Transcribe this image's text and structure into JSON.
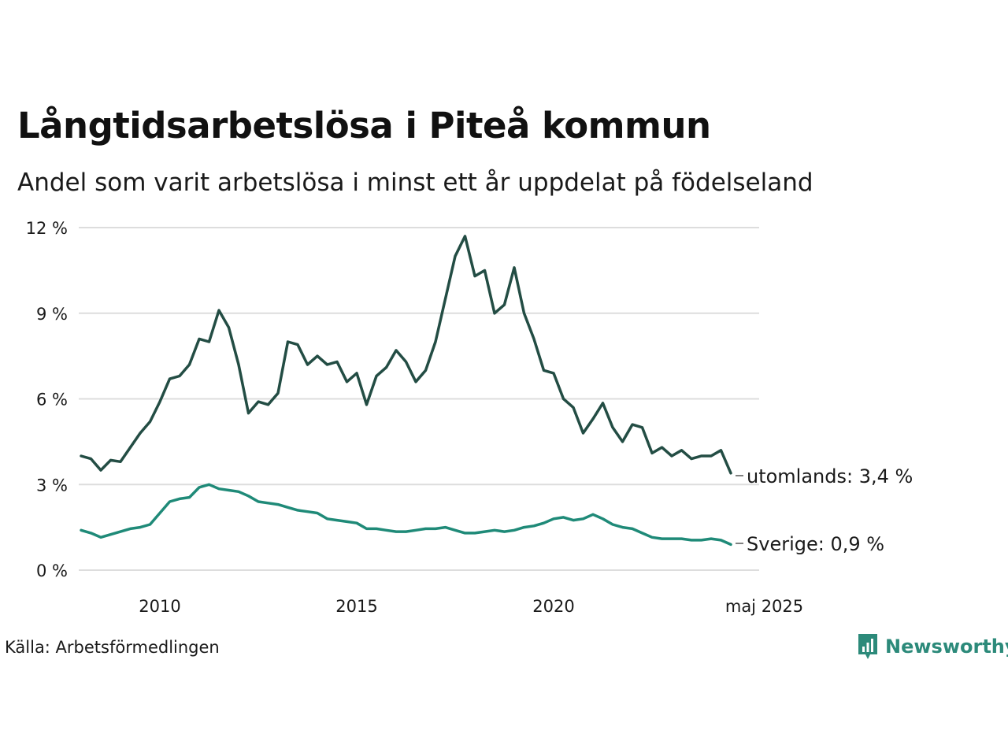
{
  "chart_data": {
    "type": "line",
    "title": "Långtidsarbetslösa i Piteå kommun",
    "subtitle": "Andel som varit arbetslösa i minst ett år uppdelat på födelseland",
    "x_ticks": [
      "2010",
      "2015",
      "2020",
      "maj 2025"
    ],
    "y_ticks": [
      "0 %",
      "3 %",
      "6 %",
      "9 %",
      "12 %"
    ],
    "ylim": [
      0,
      12
    ],
    "grid": true,
    "source": "Källa: Arbetsförmedlingen",
    "series": [
      {
        "name": "utomlands",
        "end_label": "utomlands: 3,4 %",
        "color": "#234d44",
        "points": [
          [
            "2008-01",
            4.0
          ],
          [
            "2008-04",
            3.9
          ],
          [
            "2008-07",
            3.5
          ],
          [
            "2008-10",
            3.85
          ],
          [
            "2009-01",
            3.8
          ],
          [
            "2009-04",
            4.3
          ],
          [
            "2009-07",
            4.8
          ],
          [
            "2009-10",
            5.2
          ],
          [
            "2010-01",
            5.9
          ],
          [
            "2010-04",
            6.7
          ],
          [
            "2010-07",
            6.8
          ],
          [
            "2010-10",
            7.2
          ],
          [
            "2011-01",
            8.1
          ],
          [
            "2011-04",
            8.0
          ],
          [
            "2011-07",
            9.1
          ],
          [
            "2011-10",
            8.5
          ],
          [
            "2012-01",
            7.2
          ],
          [
            "2012-04",
            5.5
          ],
          [
            "2012-07",
            5.9
          ],
          [
            "2012-10",
            5.8
          ],
          [
            "2013-01",
            6.2
          ],
          [
            "2013-04",
            8.0
          ],
          [
            "2013-07",
            7.9
          ],
          [
            "2013-10",
            7.2
          ],
          [
            "2014-01",
            7.5
          ],
          [
            "2014-04",
            7.2
          ],
          [
            "2014-07",
            7.3
          ],
          [
            "2014-10",
            6.6
          ],
          [
            "2015-01",
            6.9
          ],
          [
            "2015-04",
            5.8
          ],
          [
            "2015-07",
            6.8
          ],
          [
            "2015-10",
            7.1
          ],
          [
            "2016-01",
            7.7
          ],
          [
            "2016-04",
            7.3
          ],
          [
            "2016-07",
            6.6
          ],
          [
            "2016-10",
            7.0
          ],
          [
            "2017-01",
            8.0
          ],
          [
            "2017-04",
            9.5
          ],
          [
            "2017-07",
            11.0
          ],
          [
            "2017-10",
            11.7
          ],
          [
            "2018-01",
            10.3
          ],
          [
            "2018-04",
            10.5
          ],
          [
            "2018-07",
            9.0
          ],
          [
            "2018-10",
            9.3
          ],
          [
            "2019-01",
            10.6
          ],
          [
            "2019-04",
            9.0
          ],
          [
            "2019-07",
            8.1
          ],
          [
            "2019-10",
            7.0
          ],
          [
            "2020-01",
            6.9
          ],
          [
            "2020-04",
            6.0
          ],
          [
            "2020-07",
            5.7
          ],
          [
            "2020-10",
            4.8
          ],
          [
            "2021-01",
            5.3
          ],
          [
            "2021-04",
            5.85
          ],
          [
            "2021-07",
            5.0
          ],
          [
            "2021-10",
            4.5
          ],
          [
            "2022-01",
            5.1
          ],
          [
            "2022-04",
            5.0
          ],
          [
            "2022-07",
            4.1
          ],
          [
            "2022-10",
            4.3
          ],
          [
            "2023-01",
            4.0
          ],
          [
            "2023-04",
            4.2
          ],
          [
            "2023-07",
            3.9
          ],
          [
            "2023-10",
            4.0
          ],
          [
            "2024-01",
            4.0
          ],
          [
            "2024-04",
            4.2
          ],
          [
            "2024-07",
            3.4
          ]
        ]
      },
      {
        "name": "Sverige",
        "end_label": "Sverige: 0,9 %",
        "color": "#1f8a78",
        "points": [
          [
            "2008-01",
            1.4
          ],
          [
            "2008-04",
            1.3
          ],
          [
            "2008-07",
            1.15
          ],
          [
            "2008-10",
            1.25
          ],
          [
            "2009-01",
            1.35
          ],
          [
            "2009-04",
            1.45
          ],
          [
            "2009-07",
            1.5
          ],
          [
            "2009-10",
            1.6
          ],
          [
            "2010-01",
            2.0
          ],
          [
            "2010-04",
            2.4
          ],
          [
            "2010-07",
            2.5
          ],
          [
            "2010-10",
            2.55
          ],
          [
            "2011-01",
            2.9
          ],
          [
            "2011-04",
            3.0
          ],
          [
            "2011-07",
            2.85
          ],
          [
            "2011-10",
            2.8
          ],
          [
            "2012-01",
            2.75
          ],
          [
            "2012-04",
            2.6
          ],
          [
            "2012-07",
            2.4
          ],
          [
            "2012-10",
            2.35
          ],
          [
            "2013-01",
            2.3
          ],
          [
            "2013-04",
            2.2
          ],
          [
            "2013-07",
            2.1
          ],
          [
            "2013-10",
            2.05
          ],
          [
            "2014-01",
            2.0
          ],
          [
            "2014-04",
            1.8
          ],
          [
            "2014-07",
            1.75
          ],
          [
            "2014-10",
            1.7
          ],
          [
            "2015-01",
            1.65
          ],
          [
            "2015-04",
            1.45
          ],
          [
            "2015-07",
            1.45
          ],
          [
            "2015-10",
            1.4
          ],
          [
            "2016-01",
            1.35
          ],
          [
            "2016-04",
            1.35
          ],
          [
            "2016-07",
            1.4
          ],
          [
            "2016-10",
            1.45
          ],
          [
            "2017-01",
            1.45
          ],
          [
            "2017-04",
            1.5
          ],
          [
            "2017-07",
            1.4
          ],
          [
            "2017-10",
            1.3
          ],
          [
            "2018-01",
            1.3
          ],
          [
            "2018-04",
            1.35
          ],
          [
            "2018-07",
            1.4
          ],
          [
            "2018-10",
            1.35
          ],
          [
            "2019-01",
            1.4
          ],
          [
            "2019-04",
            1.5
          ],
          [
            "2019-07",
            1.55
          ],
          [
            "2019-10",
            1.65
          ],
          [
            "2020-01",
            1.8
          ],
          [
            "2020-04",
            1.85
          ],
          [
            "2020-07",
            1.75
          ],
          [
            "2020-10",
            1.8
          ],
          [
            "2021-01",
            1.95
          ],
          [
            "2021-04",
            1.8
          ],
          [
            "2021-07",
            1.6
          ],
          [
            "2021-10",
            1.5
          ],
          [
            "2022-01",
            1.45
          ],
          [
            "2022-04",
            1.3
          ],
          [
            "2022-07",
            1.15
          ],
          [
            "2022-10",
            1.1
          ],
          [
            "2023-01",
            1.1
          ],
          [
            "2023-04",
            1.1
          ],
          [
            "2023-07",
            1.05
          ],
          [
            "2023-10",
            1.05
          ],
          [
            "2024-01",
            1.1
          ],
          [
            "2024-04",
            1.05
          ],
          [
            "2024-07",
            0.9
          ]
        ]
      }
    ]
  },
  "brand": {
    "name": "Newsworthy",
    "icon": "bar-chart-speech-bubble-icon",
    "color": "#2c8a7a"
  }
}
